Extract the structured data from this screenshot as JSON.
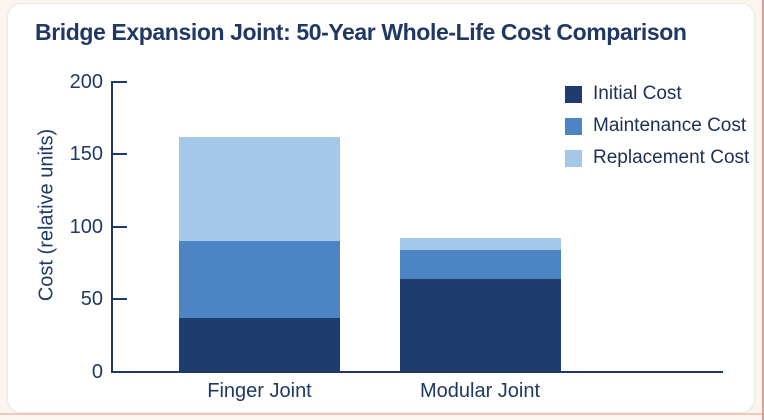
{
  "window": {
    "outer_background": "#faf6ef",
    "card_background": "#ffffff",
    "title_color": "#1f3864",
    "axis_color": "#1e3a64"
  },
  "chart_data": {
    "type": "bar",
    "stacked": true,
    "title": "Bridge Expansion Joint: 50-Year Whole-Life Cost Comparison",
    "categories": [
      "Finger Joint",
      "Modular Joint"
    ],
    "series": [
      {
        "name": "Initial Cost",
        "values": [
          37,
          64
        ],
        "color": "#1e3c6d"
      },
      {
        "name": "Maintenance Cost",
        "values": [
          53,
          20
        ],
        "color": "#4d85c4"
      },
      {
        "name": "Replacement Cost",
        "values": [
          72,
          8
        ],
        "color": "#a4c8e8"
      }
    ],
    "totals": [
      162,
      92
    ],
    "xlabel": "",
    "ylabel": "Cost (relative units)",
    "ylim": [
      0,
      200
    ],
    "yticks": [
      0,
      50,
      100,
      150,
      200
    ],
    "grid": false,
    "legend_position": "upper right"
  }
}
